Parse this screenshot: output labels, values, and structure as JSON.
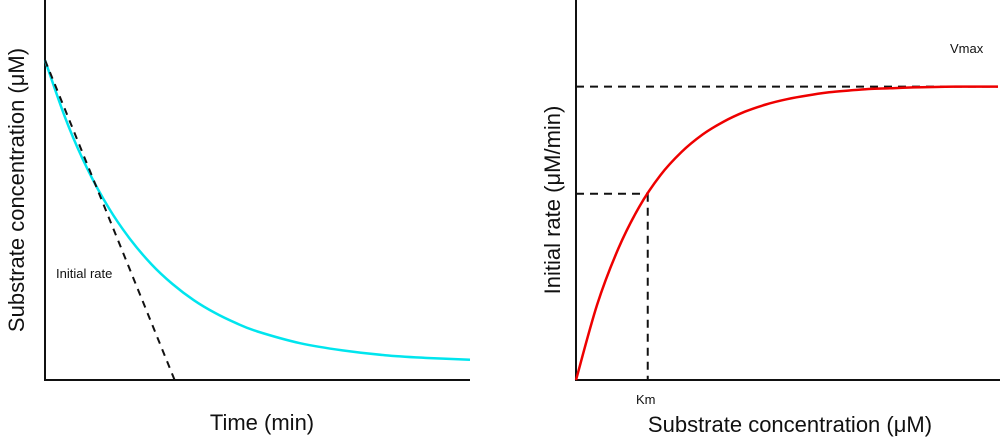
{
  "chart_data": [
    {
      "type": "line",
      "xlabel": "Time (min)",
      "ylabel": "Substrate concentration (μM)",
      "grid": false,
      "ticks": false,
      "xlim": [
        0,
        10
      ],
      "ylim": [
        0,
        10
      ],
      "colors": {
        "curve": "#00e5ee",
        "tangent": "#111111"
      },
      "series": [
        {
          "x": [
            0,
            0.5,
            1,
            1.5,
            2,
            2.5,
            3,
            3.5,
            4,
            4.5,
            5,
            6,
            7,
            8,
            9,
            10
          ],
          "y": [
            9.3,
            7.54,
            6.13,
            5.0,
            4.1,
            3.37,
            2.79,
            2.32,
            1.95,
            1.65,
            1.41,
            1.07,
            0.86,
            0.72,
            0.64,
            0.59
          ]
        }
      ],
      "tangent_line": {
        "label": "Initial rate",
        "x": [
          0,
          3.05
        ],
        "y": [
          9.3,
          0
        ]
      }
    },
    {
      "type": "line",
      "xlabel": "Substrate concentration (μM)",
      "ylabel": "Initial rate (μM/min)",
      "grid": false,
      "ticks": false,
      "xlim": [
        0,
        10
      ],
      "ylim": [
        0,
        10
      ],
      "colors": {
        "curve": "#ee0000",
        "reference": "#111111"
      },
      "series": [
        {
          "x": [
            0,
            0.5,
            1,
            1.5,
            2,
            2.5,
            3,
            3.5,
            4,
            4.5,
            5,
            5.5,
            6,
            6.5,
            7,
            7.5,
            8,
            8.5,
            9,
            9.5,
            10
          ],
          "y": [
            0,
            1.98,
            3.45,
            4.56,
            5.39,
            6.0,
            6.46,
            6.8,
            7.06,
            7.25,
            7.39,
            7.49,
            7.57,
            7.62,
            7.66,
            7.68,
            7.7,
            7.71,
            7.72,
            7.72,
            7.72
          ]
        }
      ],
      "reference_lines": {
        "vmax_label": "Vmax",
        "vmax": 7.72,
        "km_label": "Km",
        "km": 1.7,
        "half_vmax": 4.9
      }
    }
  ]
}
